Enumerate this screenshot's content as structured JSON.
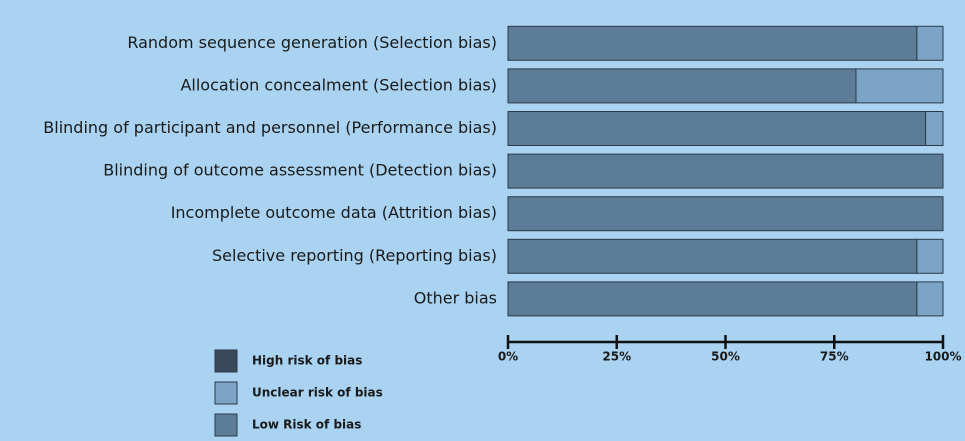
{
  "chart_data": {
    "type": "stacked-barh",
    "categories": [
      "Random sequence generation (Selection bias)",
      "Allocation concealment (Selection bias)",
      "Blinding of participant and personnel (Performance bias)",
      "Blinding of outcome assessment (Detection bias)",
      "Incomplete outcome data (Attrition bias)",
      "Selective reporting (Reporting bias)",
      "Other bias"
    ],
    "series": [
      {
        "name": "High risk of bias",
        "color": "#37495a",
        "values": [
          0,
          0,
          0,
          0,
          0,
          0,
          0
        ]
      },
      {
        "name": "Unclear risk of bias",
        "color": "#7ba4c6",
        "values": [
          6,
          20,
          4,
          0,
          0,
          6,
          6
        ]
      },
      {
        "name": "Low Risk of bias",
        "color": "#5d7c98",
        "values": [
          94,
          80,
          96,
          100,
          100,
          94,
          94
        ]
      }
    ],
    "xlim": [
      0,
      100
    ],
    "xticks": [
      {
        "value": 0,
        "label": "0%"
      },
      {
        "value": 25,
        "label": "25%"
      },
      {
        "value": 50,
        "label": "50%"
      },
      {
        "value": 75,
        "label": "75%"
      },
      {
        "value": 100,
        "label": "100%"
      }
    ]
  }
}
